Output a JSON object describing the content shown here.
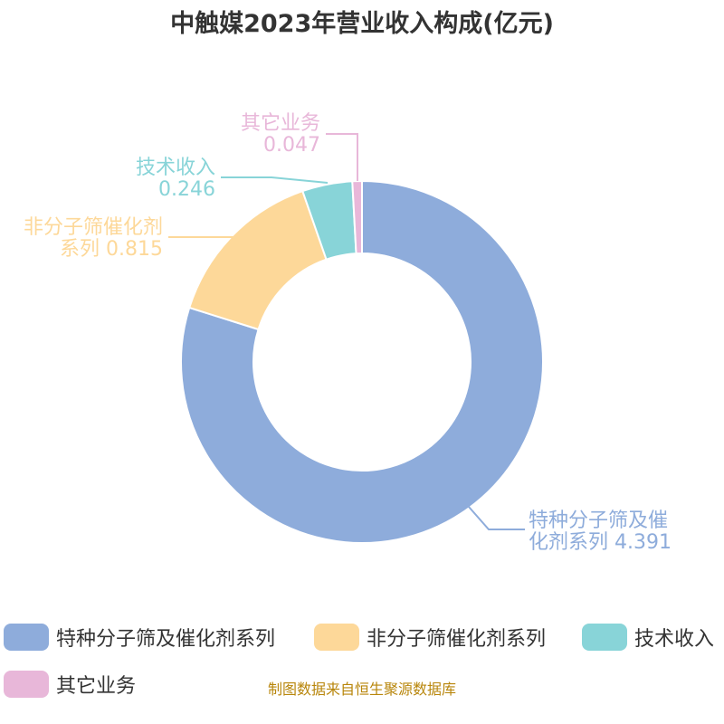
{
  "chart_data": {
    "type": "pie",
    "title": "中触媒2023年营业收入构成(亿元)",
    "series": [
      {
        "name": "特种分子筛及催化剂系列",
        "value": 4.391,
        "label_lines": [
          "特种分子筛及催",
          "化剂系列 4.391"
        ],
        "color": "#8eacdb"
      },
      {
        "name": "非分子筛催化剂系列",
        "value": 0.815,
        "label_lines": [
          "非分子筛催化剂",
          "系列 0.815"
        ],
        "color": "#fdd899"
      },
      {
        "name": "技术收入",
        "value": 0.246,
        "label_lines": [
          "技术收入",
          "0.246"
        ],
        "color": "#88d4d8"
      },
      {
        "name": "其它业务",
        "value": 0.047,
        "label_lines": [
          "其它业务",
          "0.047"
        ],
        "color": "#e8b7d9"
      }
    ],
    "donut": true,
    "legend_position": "bottom"
  },
  "source": "制图数据来自恒生聚源数据库"
}
